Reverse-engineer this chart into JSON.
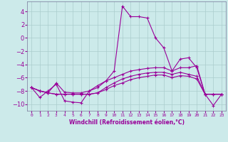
{
  "xlabel": "Windchill (Refroidissement éolien,°C)",
  "x": [
    0,
    1,
    2,
    3,
    4,
    5,
    6,
    7,
    8,
    9,
    10,
    11,
    12,
    13,
    14,
    15,
    16,
    17,
    18,
    19,
    20,
    21,
    22,
    23
  ],
  "line1": [
    -7.5,
    -9.0,
    -8.0,
    -7.0,
    -9.5,
    -9.7,
    -9.8,
    -8.0,
    -7.2,
    -6.5,
    -5.0,
    4.8,
    3.2,
    3.2,
    3.0,
    0.0,
    -1.5,
    -5.0,
    -3.2,
    -3.0,
    -4.5,
    -8.5,
    -10.2,
    -8.5
  ],
  "line2": [
    -7.5,
    -8.0,
    -8.3,
    -6.8,
    -8.2,
    -8.3,
    -8.3,
    -8.0,
    -7.5,
    -6.5,
    -6.0,
    -5.5,
    -5.0,
    -4.8,
    -4.6,
    -4.5,
    -4.5,
    -5.0,
    -4.5,
    -4.5,
    -4.2,
    -8.5,
    -8.5,
    -8.5
  ],
  "line3": [
    -7.5,
    -8.0,
    -8.3,
    -8.5,
    -8.5,
    -8.5,
    -8.5,
    -8.5,
    -8.3,
    -7.8,
    -7.2,
    -6.8,
    -6.3,
    -6.0,
    -5.8,
    -5.6,
    -5.6,
    -6.0,
    -5.7,
    -5.8,
    -6.2,
    -8.5,
    -8.5,
    -8.5
  ],
  "line4": [
    -7.5,
    -8.0,
    -8.3,
    -8.5,
    -8.5,
    -8.5,
    -8.5,
    -8.5,
    -8.3,
    -7.5,
    -6.8,
    -6.2,
    -5.8,
    -5.5,
    -5.3,
    -5.2,
    -5.2,
    -5.5,
    -5.2,
    -5.5,
    -5.8,
    -8.5,
    -8.5,
    -8.5
  ],
  "line_color": "#990099",
  "bg_color": "#cceaea",
  "grid_color": "#aacccc",
  "ylim": [
    -11.0,
    5.5
  ],
  "yticks": [
    -10,
    -8,
    -6,
    -4,
    -2,
    0,
    2,
    4
  ],
  "xlim": [
    -0.5,
    23.5
  ]
}
